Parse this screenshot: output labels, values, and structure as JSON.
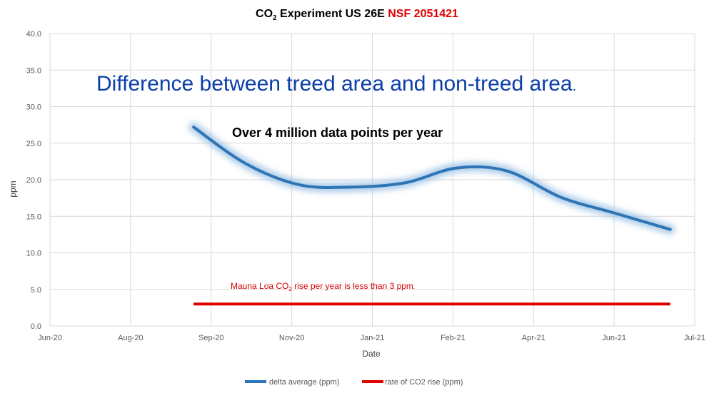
{
  "chart_data": {
    "type": "line",
    "title": {
      "prefix": "CO",
      "subscript": "2",
      "middle": " Experiment US 26E ",
      "highlight": "NSF 2051421",
      "highlight_color": "#e00000"
    },
    "annotations": {
      "headline": "Difference between treed area and non-treed area",
      "headline_dot": ".",
      "headline_color": "#0b3ea8",
      "subhead": "Over 4 million data points per year",
      "note_prefix": "Mauna Loa CO",
      "note_subscript": "2",
      "note_suffix": " rise per year is less than 3 ppm",
      "note_dot": ".",
      "note_color": "#d40000"
    },
    "xlabel": "Date",
    "ylabel": "ppm",
    "xlim": [
      "2020-06-01",
      "2021-07-01"
    ],
    "ylim": [
      0,
      40
    ],
    "x_ticks": [
      "Jun-20",
      "Aug-20",
      "Sep-20",
      "Nov-20",
      "Jan-21",
      "Feb-21",
      "Apr-21",
      "Jun-21",
      "Jul-21"
    ],
    "y_ticks": [
      "0.0",
      "5.0",
      "10.0",
      "15.0",
      "20.0",
      "25.0",
      "30.0",
      "35.0",
      "40.0"
    ],
    "grid": true,
    "legend_position": "bottom",
    "series": [
      {
        "name": "delta average (ppm)",
        "color": "#2e75b6",
        "x": [
          "2020-08-28",
          "2020-09-29",
          "2020-11-01",
          "2020-12-04",
          "2021-01-05",
          "2021-02-05",
          "2021-03-08",
          "2021-04-10",
          "2021-05-12",
          "2021-06-16"
        ],
        "y": [
          27.2,
          22.2,
          19.3,
          19.0,
          19.6,
          21.6,
          21.2,
          17.6,
          15.5,
          13.2
        ]
      },
      {
        "name": "rate of CO2 rise (ppm)",
        "color": "#e00000",
        "x": [
          "2020-08-28",
          "2021-06-16"
        ],
        "y": [
          3.0,
          3.0
        ]
      }
    ]
  }
}
